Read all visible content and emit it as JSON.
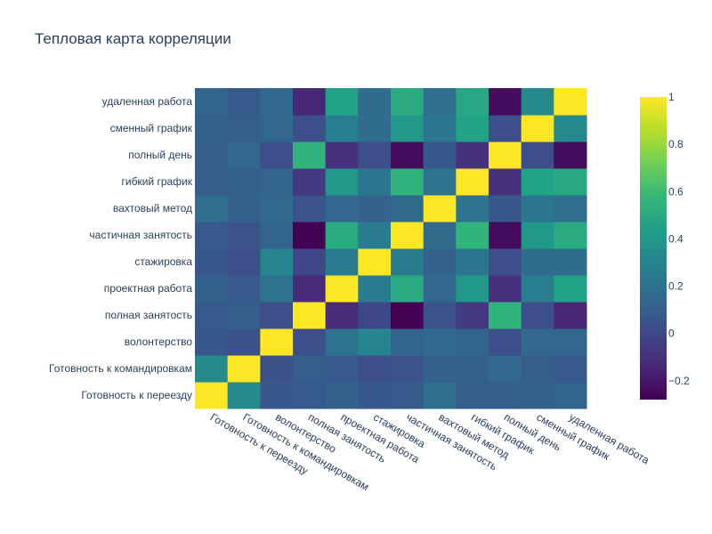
{
  "chart_data": {
    "type": "heatmap",
    "title": "Тепловая карта корреляции",
    "labels": [
      "Готовность к переезду",
      "Готовность к командировкам",
      "волонтерство",
      "полная занятость",
      "проектная работа",
      "стажировка",
      "частичная занятость",
      "вахтовый метод",
      "гибкий график",
      "полный день",
      "сменный график",
      "удаленная работа"
    ],
    "z": [
      [
        1.0,
        0.33,
        0.07,
        0.08,
        0.12,
        0.07,
        0.08,
        0.18,
        0.1,
        0.1,
        0.12,
        0.13
      ],
      [
        0.33,
        1.0,
        0.04,
        0.1,
        0.08,
        0.03,
        0.05,
        0.12,
        0.11,
        0.14,
        0.1,
        0.08
      ],
      [
        0.07,
        0.04,
        1.0,
        0.03,
        0.2,
        0.3,
        0.13,
        0.15,
        0.13,
        0.03,
        0.14,
        0.14
      ],
      [
        0.08,
        0.1,
        0.03,
        1.0,
        -0.12,
        0.0,
        -0.28,
        0.05,
        -0.06,
        0.55,
        0.03,
        -0.14
      ],
      [
        0.12,
        0.08,
        0.2,
        -0.12,
        1.0,
        0.25,
        0.5,
        0.14,
        0.4,
        -0.1,
        0.26,
        0.46
      ],
      [
        0.07,
        0.03,
        0.3,
        0.0,
        0.25,
        1.0,
        0.25,
        0.12,
        0.22,
        0.03,
        0.17,
        0.17
      ],
      [
        0.08,
        0.05,
        0.13,
        -0.28,
        0.5,
        0.25,
        1.0,
        0.16,
        0.55,
        -0.24,
        0.4,
        0.5
      ],
      [
        0.18,
        0.12,
        0.15,
        0.05,
        0.14,
        0.12,
        0.16,
        1.0,
        0.2,
        0.07,
        0.22,
        0.18
      ],
      [
        0.1,
        0.11,
        0.13,
        -0.06,
        0.4,
        0.22,
        0.55,
        0.2,
        1.0,
        -0.1,
        0.46,
        0.49
      ],
      [
        0.1,
        0.14,
        0.03,
        0.55,
        -0.1,
        0.03,
        -0.24,
        0.07,
        -0.1,
        1.0,
        0.03,
        -0.24
      ],
      [
        0.12,
        0.1,
        0.14,
        0.03,
        0.26,
        0.17,
        0.4,
        0.22,
        0.46,
        0.03,
        1.0,
        0.32
      ],
      [
        0.13,
        0.08,
        0.14,
        -0.14,
        0.46,
        0.17,
        0.5,
        0.18,
        0.49,
        -0.24,
        0.32,
        1.0
      ]
    ],
    "zmin": -0.28,
    "zmax": 1.0,
    "colorscale": "Viridis",
    "colorbar_ticks": [
      -0.2,
      0,
      0.2,
      0.4,
      0.6,
      0.8,
      1
    ]
  }
}
